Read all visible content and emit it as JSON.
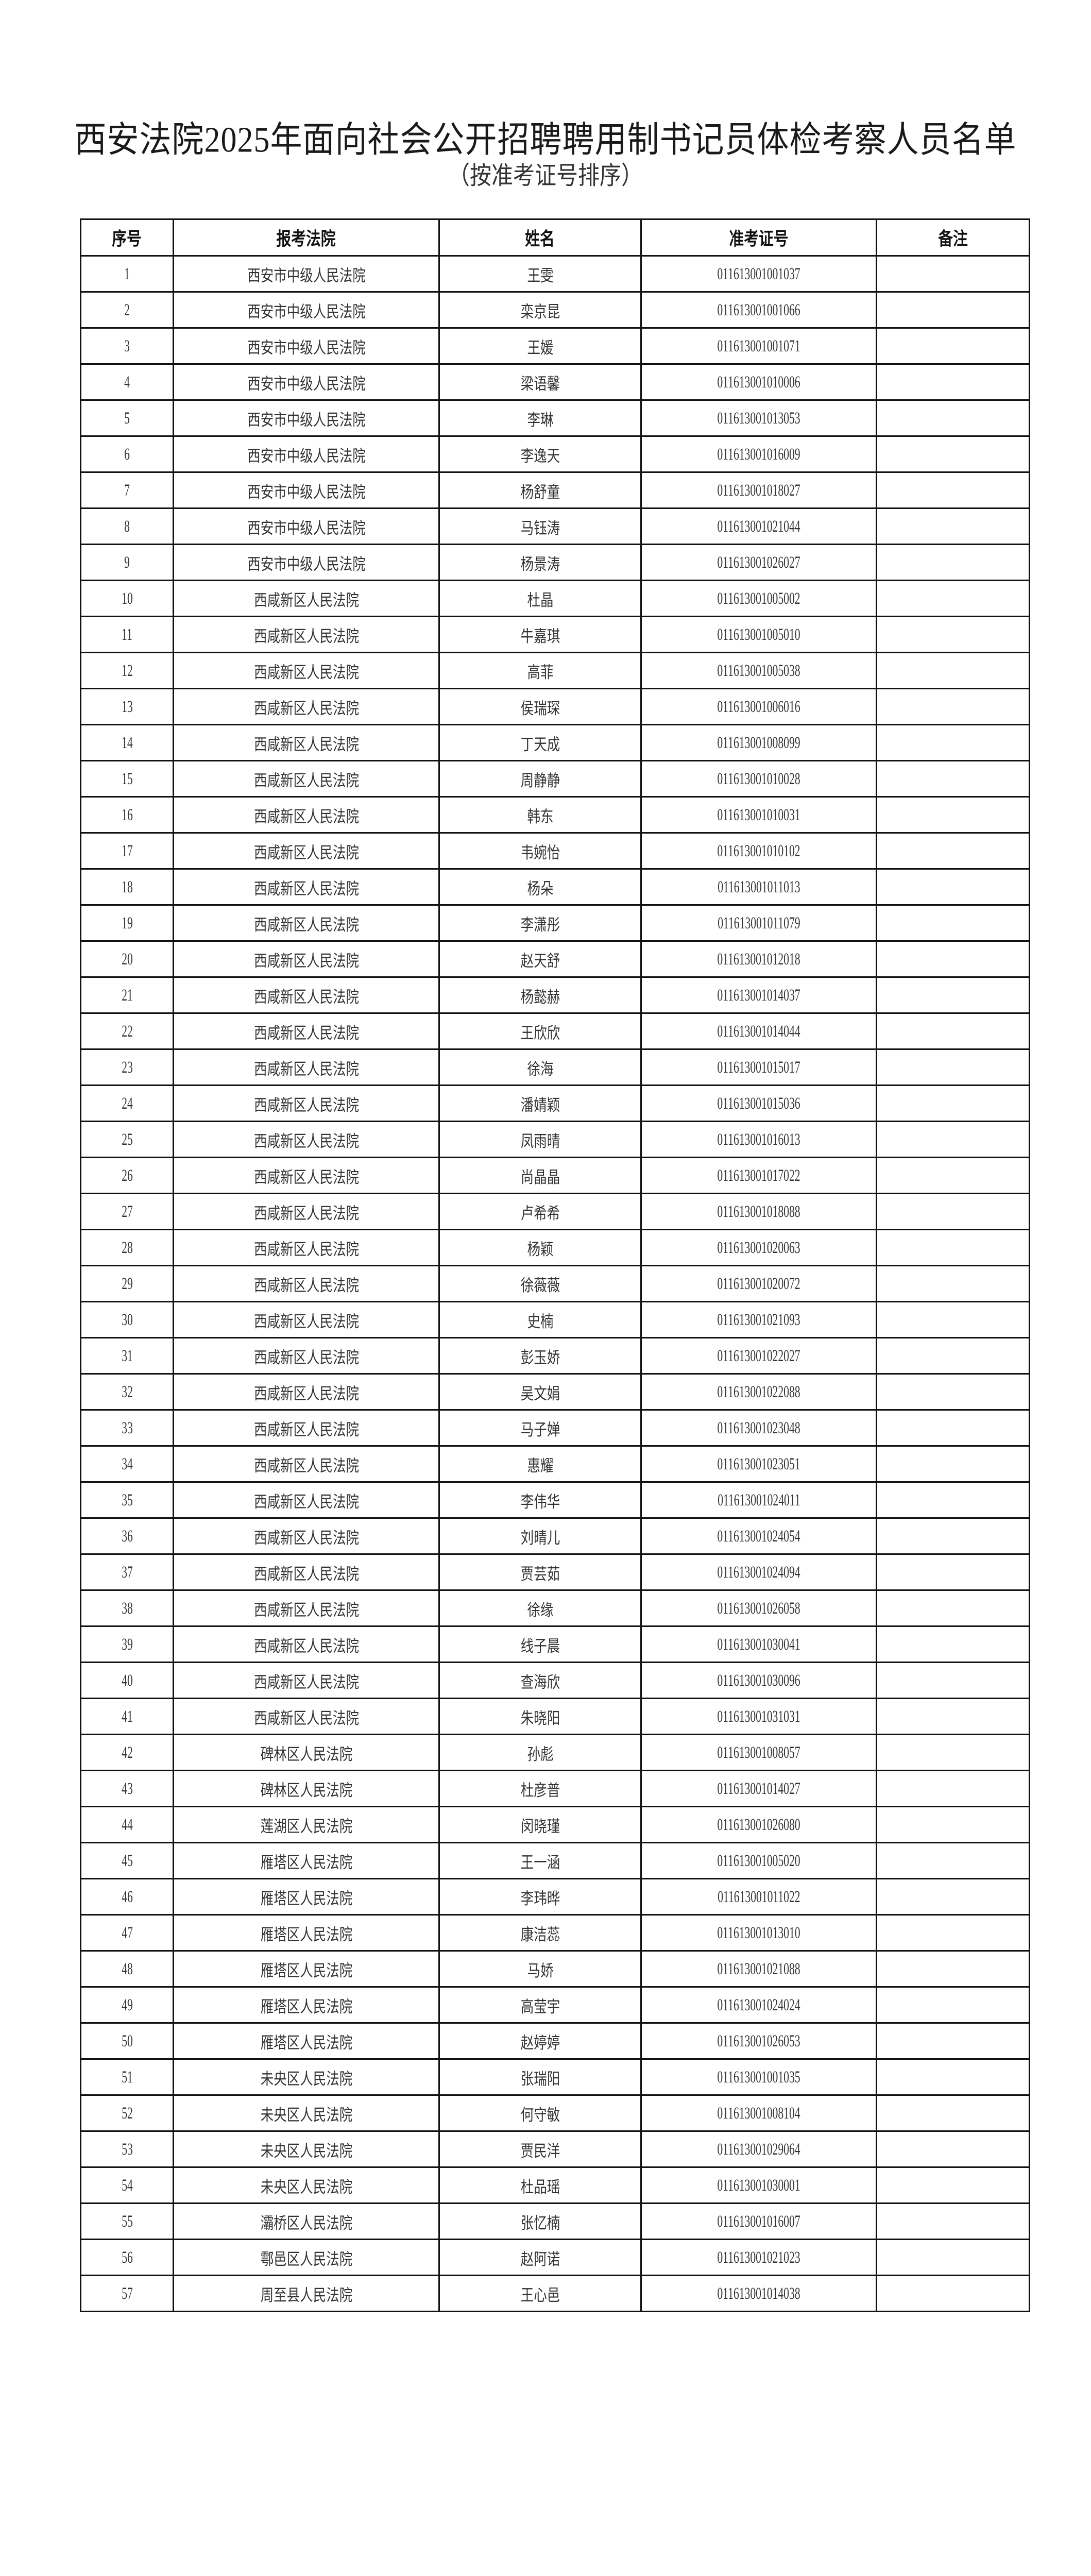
{
  "document": {
    "title": "西安法院2025年面向社会公开招聘聘用制书记员体检考察人员名单",
    "subtitle": "（按准考证号排序）"
  },
  "table": {
    "headers": [
      "序号",
      "报考法院",
      "姓名",
      "准考证号",
      "备注"
    ],
    "rows": [
      [
        "1",
        "西安市中级人民法院",
        "王雯",
        "011613001001037",
        ""
      ],
      [
        "2",
        "西安市中级人民法院",
        "栾京昆",
        "011613001001066",
        ""
      ],
      [
        "3",
        "西安市中级人民法院",
        "王媛",
        "011613001001071",
        ""
      ],
      [
        "4",
        "西安市中级人民法院",
        "梁语馨",
        "011613001010006",
        ""
      ],
      [
        "5",
        "西安市中级人民法院",
        "李琳",
        "011613001013053",
        ""
      ],
      [
        "6",
        "西安市中级人民法院",
        "李逸天",
        "011613001016009",
        ""
      ],
      [
        "7",
        "西安市中级人民法院",
        "杨舒童",
        "011613001018027",
        ""
      ],
      [
        "8",
        "西安市中级人民法院",
        "马钰涛",
        "011613001021044",
        ""
      ],
      [
        "9",
        "西安市中级人民法院",
        "杨景涛",
        "011613001026027",
        ""
      ],
      [
        "10",
        "西咸新区人民法院",
        "杜晶",
        "011613001005002",
        ""
      ],
      [
        "11",
        "西咸新区人民法院",
        "牛嘉琪",
        "011613001005010",
        ""
      ],
      [
        "12",
        "西咸新区人民法院",
        "高菲",
        "011613001005038",
        ""
      ],
      [
        "13",
        "西咸新区人民法院",
        "侯瑞琛",
        "011613001006016",
        ""
      ],
      [
        "14",
        "西咸新区人民法院",
        "丁天成",
        "011613001008099",
        ""
      ],
      [
        "15",
        "西咸新区人民法院",
        "周静静",
        "011613001010028",
        ""
      ],
      [
        "16",
        "西咸新区人民法院",
        "韩东",
        "011613001010031",
        ""
      ],
      [
        "17",
        "西咸新区人民法院",
        "韦婉怡",
        "011613001010102",
        ""
      ],
      [
        "18",
        "西咸新区人民法院",
        "杨朵",
        "011613001011013",
        ""
      ],
      [
        "19",
        "西咸新区人民法院",
        "李潇彤",
        "011613001011079",
        ""
      ],
      [
        "20",
        "西咸新区人民法院",
        "赵天舒",
        "011613001012018",
        ""
      ],
      [
        "21",
        "西咸新区人民法院",
        "杨懿赫",
        "011613001014037",
        ""
      ],
      [
        "22",
        "西咸新区人民法院",
        "王欣欣",
        "011613001014044",
        ""
      ],
      [
        "23",
        "西咸新区人民法院",
        "徐海",
        "011613001015017",
        ""
      ],
      [
        "24",
        "西咸新区人民法院",
        "潘婧颖",
        "011613001015036",
        ""
      ],
      [
        "25",
        "西咸新区人民法院",
        "凤雨晴",
        "011613001016013",
        ""
      ],
      [
        "26",
        "西咸新区人民法院",
        "尚晶晶",
        "011613001017022",
        ""
      ],
      [
        "27",
        "西咸新区人民法院",
        "卢希希",
        "011613001018088",
        ""
      ],
      [
        "28",
        "西咸新区人民法院",
        "杨颖",
        "011613001020063",
        ""
      ],
      [
        "29",
        "西咸新区人民法院",
        "徐薇薇",
        "011613001020072",
        ""
      ],
      [
        "30",
        "西咸新区人民法院",
        "史楠",
        "011613001021093",
        ""
      ],
      [
        "31",
        "西咸新区人民法院",
        "彭玉娇",
        "011613001022027",
        ""
      ],
      [
        "32",
        "西咸新区人民法院",
        "吴文娟",
        "011613001022088",
        ""
      ],
      [
        "33",
        "西咸新区人民法院",
        "马子婵",
        "011613001023048",
        ""
      ],
      [
        "34",
        "西咸新区人民法院",
        "惠耀",
        "011613001023051",
        ""
      ],
      [
        "35",
        "西咸新区人民法院",
        "李伟华",
        "011613001024011",
        ""
      ],
      [
        "36",
        "西咸新区人民法院",
        "刘晴儿",
        "011613001024054",
        ""
      ],
      [
        "37",
        "西咸新区人民法院",
        "贾芸茹",
        "011613001024094",
        ""
      ],
      [
        "38",
        "西咸新区人民法院",
        "徐缘",
        "011613001026058",
        ""
      ],
      [
        "39",
        "西咸新区人民法院",
        "线子晨",
        "011613001030041",
        ""
      ],
      [
        "40",
        "西咸新区人民法院",
        "查海欣",
        "011613001030096",
        ""
      ],
      [
        "41",
        "西咸新区人民法院",
        "朱晓阳",
        "011613001031031",
        ""
      ],
      [
        "42",
        "碑林区人民法院",
        "孙彪",
        "011613001008057",
        ""
      ],
      [
        "43",
        "碑林区人民法院",
        "杜彦普",
        "011613001014027",
        ""
      ],
      [
        "44",
        "莲湖区人民法院",
        "闵晓瑾",
        "011613001026080",
        ""
      ],
      [
        "45",
        "雁塔区人民法院",
        "王一涵",
        "011613001005020",
        ""
      ],
      [
        "46",
        "雁塔区人民法院",
        "李玮晔",
        "011613001011022",
        ""
      ],
      [
        "47",
        "雁塔区人民法院",
        "康洁蕊",
        "011613001013010",
        ""
      ],
      [
        "48",
        "雁塔区人民法院",
        "马娇",
        "011613001021088",
        ""
      ],
      [
        "49",
        "雁塔区人民法院",
        "高莹宇",
        "011613001024024",
        ""
      ],
      [
        "50",
        "雁塔区人民法院",
        "赵婷婷",
        "011613001026053",
        ""
      ],
      [
        "51",
        "未央区人民法院",
        "张瑞阳",
        "011613001001035",
        ""
      ],
      [
        "52",
        "未央区人民法院",
        "何守敏",
        "011613001008104",
        ""
      ],
      [
        "53",
        "未央区人民法院",
        "贾民洋",
        "011613001029064",
        ""
      ],
      [
        "54",
        "未央区人民法院",
        "杜品瑶",
        "011613001030001",
        ""
      ],
      [
        "55",
        "灞桥区人民法院",
        "张忆楠",
        "011613001016007",
        ""
      ],
      [
        "56",
        "鄠邑区人民法院",
        "赵阿诺",
        "011613001021023",
        ""
      ],
      [
        "57",
        "周至县人民法院",
        "王心邑",
        "011613001014038",
        ""
      ]
    ]
  }
}
